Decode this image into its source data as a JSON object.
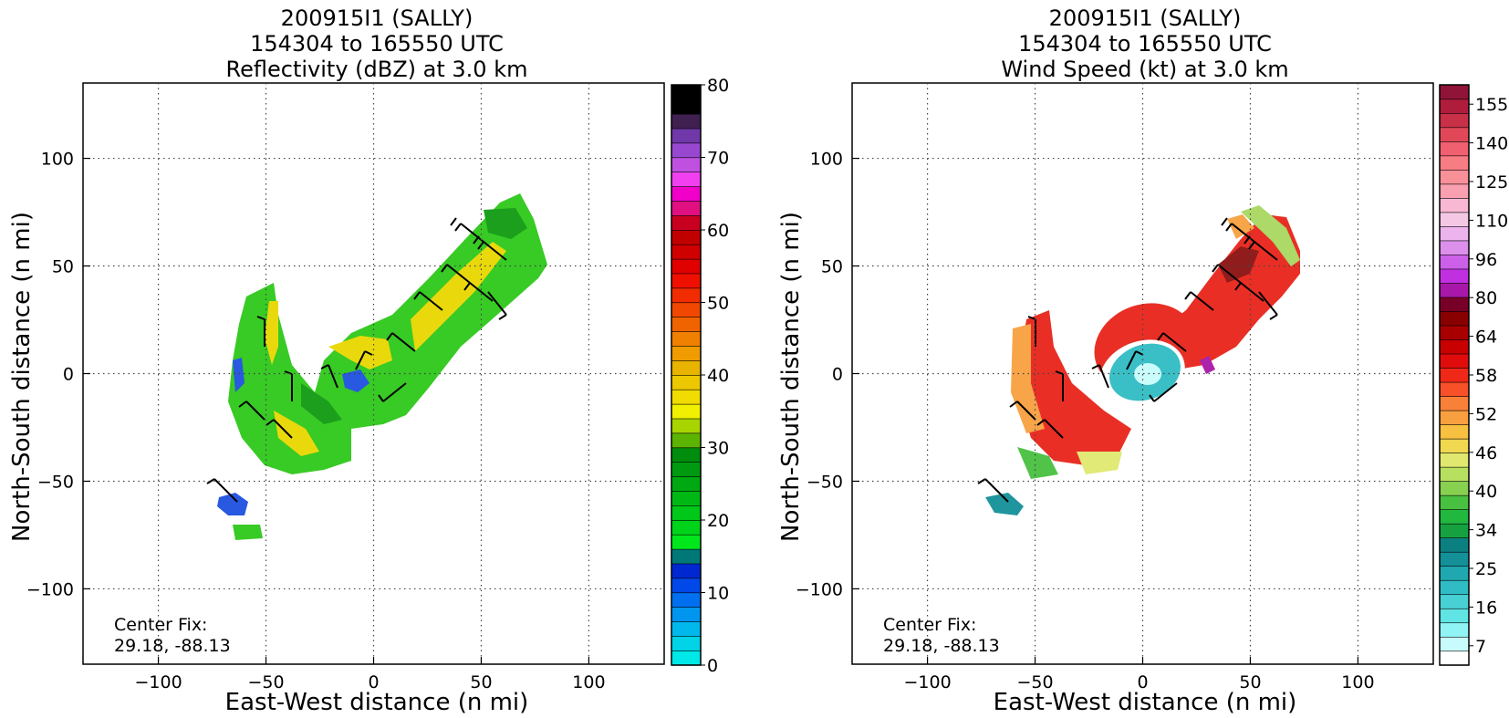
{
  "chart_data": [
    {
      "type": "heatmap",
      "title_lines": [
        "200915I1 (SALLY)",
        "154304 to 165550 UTC",
        "Reflectivity (dBZ) at 3.0 km"
      ],
      "xlabel": "East-West distance (n mi)",
      "ylabel": "North-South distance (n mi)",
      "xlim": [
        -135,
        135
      ],
      "ylim": [
        -135,
        135
      ],
      "xticks": [
        -100,
        -50,
        0,
        50,
        100
      ],
      "yticks": [
        -100,
        -50,
        0,
        50,
        100
      ],
      "grid": true,
      "annotation": [
        "Center Fix:",
        "29.18, -88.13"
      ],
      "colorbar": {
        "min": 0,
        "max": 80,
        "tick_labels": [
          "0",
          "10",
          "20",
          "30",
          "40",
          "50",
          "60",
          "70",
          "80"
        ],
        "colors": [
          "#00e8e8",
          "#00d4e6",
          "#00b8ec",
          "#0096f0",
          "#0070f0",
          "#0048e8",
          "#0028d0",
          "#007878",
          "#00e81c",
          "#00d41a",
          "#00c818",
          "#00b814",
          "#00a812",
          "#009a10",
          "#008c0c",
          "#5cb400",
          "#a8d400",
          "#f0f000",
          "#f0dc00",
          "#ecc800",
          "#e8b400",
          "#f09c00",
          "#f08000",
          "#f06400",
          "#f04800",
          "#f02c00",
          "#f01000",
          "#e00000",
          "#d00000",
          "#c00000",
          "#c80020",
          "#e01080",
          "#f000c8",
          "#f040f0",
          "#c050e0",
          "#9848d0",
          "#7038a8",
          "#402050",
          "#000000",
          "#000000"
        ]
      }
    },
    {
      "type": "heatmap",
      "title_lines": [
        "200915I1 (SALLY)",
        "154304 to 165550 UTC",
        "Wind Speed (kt) at 3.0 km"
      ],
      "xlabel": "East-West distance (n mi)",
      "ylabel": "North-South distance (n mi)",
      "xlim": [
        -135,
        135
      ],
      "ylim": [
        -135,
        135
      ],
      "xticks": [
        -100,
        -50,
        0,
        50,
        100
      ],
      "yticks": [
        -100,
        -50,
        0,
        50,
        100
      ],
      "grid": true,
      "annotation": [
        "Center Fix:",
        "29.18, -88.13"
      ],
      "colorbar": {
        "tick_labels": [
          "7",
          "16",
          "25",
          "34",
          "40",
          "46",
          "52",
          "58",
          "64",
          "80",
          "96",
          "110",
          "125",
          "140",
          "155"
        ],
        "colors": [
          "#ffffff",
          "#c8fcfc",
          "#90f4f4",
          "#60e4e4",
          "#48d0d4",
          "#30bcc4",
          "#20a8b0",
          "#149098",
          "#0c8080",
          "#16a040",
          "#22b840",
          "#48c040",
          "#88d050",
          "#b8e060",
          "#e0e870",
          "#f0d850",
          "#f8c040",
          "#f8a040",
          "#f88038",
          "#f85028",
          "#f02818",
          "#e00c0c",
          "#c80000",
          "#a80000",
          "#880000",
          "#780028",
          "#a818a8",
          "#c030e0",
          "#cc60e8",
          "#dc90ec",
          "#ecb4ec",
          "#f4c8e4",
          "#f8b8d4",
          "#f8a0b0",
          "#f89098",
          "#f87c84",
          "#f06070",
          "#e04858",
          "#c83048",
          "#b01c3c",
          "#901438"
        ]
      }
    }
  ]
}
